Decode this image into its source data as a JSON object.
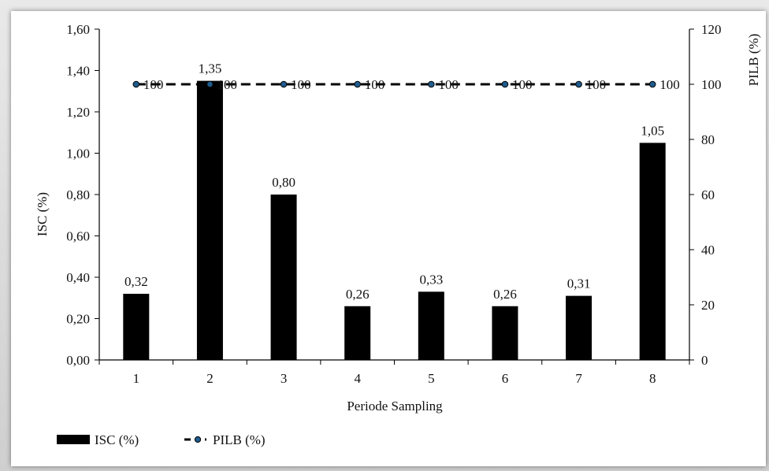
{
  "chart_data": {
    "type": "bar",
    "categories": [
      "1",
      "2",
      "3",
      "4",
      "5",
      "6",
      "7",
      "8"
    ],
    "xlabel": "Periode Sampling",
    "ylabel": "ISC (%)",
    "y2label": "PILB (%)",
    "ylim": [
      0,
      1.6
    ],
    "y2lim": [
      0,
      120
    ],
    "yticks": [
      "0,00",
      "0,20",
      "0,40",
      "0,60",
      "0,80",
      "1,00",
      "1,20",
      "1,40",
      "1,60"
    ],
    "y2ticks": [
      "0",
      "20",
      "40",
      "60",
      "80",
      "100",
      "120"
    ],
    "series": [
      {
        "name": "ISC (%)",
        "type": "bar",
        "axis": "left",
        "values": [
          0.32,
          1.35,
          0.8,
          0.26,
          0.33,
          0.26,
          0.31,
          1.05
        ],
        "labels": [
          "0,32",
          "1,35",
          "0,80",
          "0,26",
          "0,33",
          "0,26",
          "0,31",
          "1,05"
        ],
        "color": "#000000"
      },
      {
        "name": "PILB (%)",
        "type": "line",
        "style": "dashed",
        "axis": "right",
        "values": [
          100,
          100,
          100,
          100,
          100,
          100,
          100,
          100
        ],
        "labels": [
          "100",
          "100",
          "100",
          "100",
          "100",
          "100",
          "100",
          "100"
        ],
        "color": "#000000",
        "marker_color": "#1f5b8c"
      }
    ],
    "legend": "bottom-left",
    "grid": false
  }
}
